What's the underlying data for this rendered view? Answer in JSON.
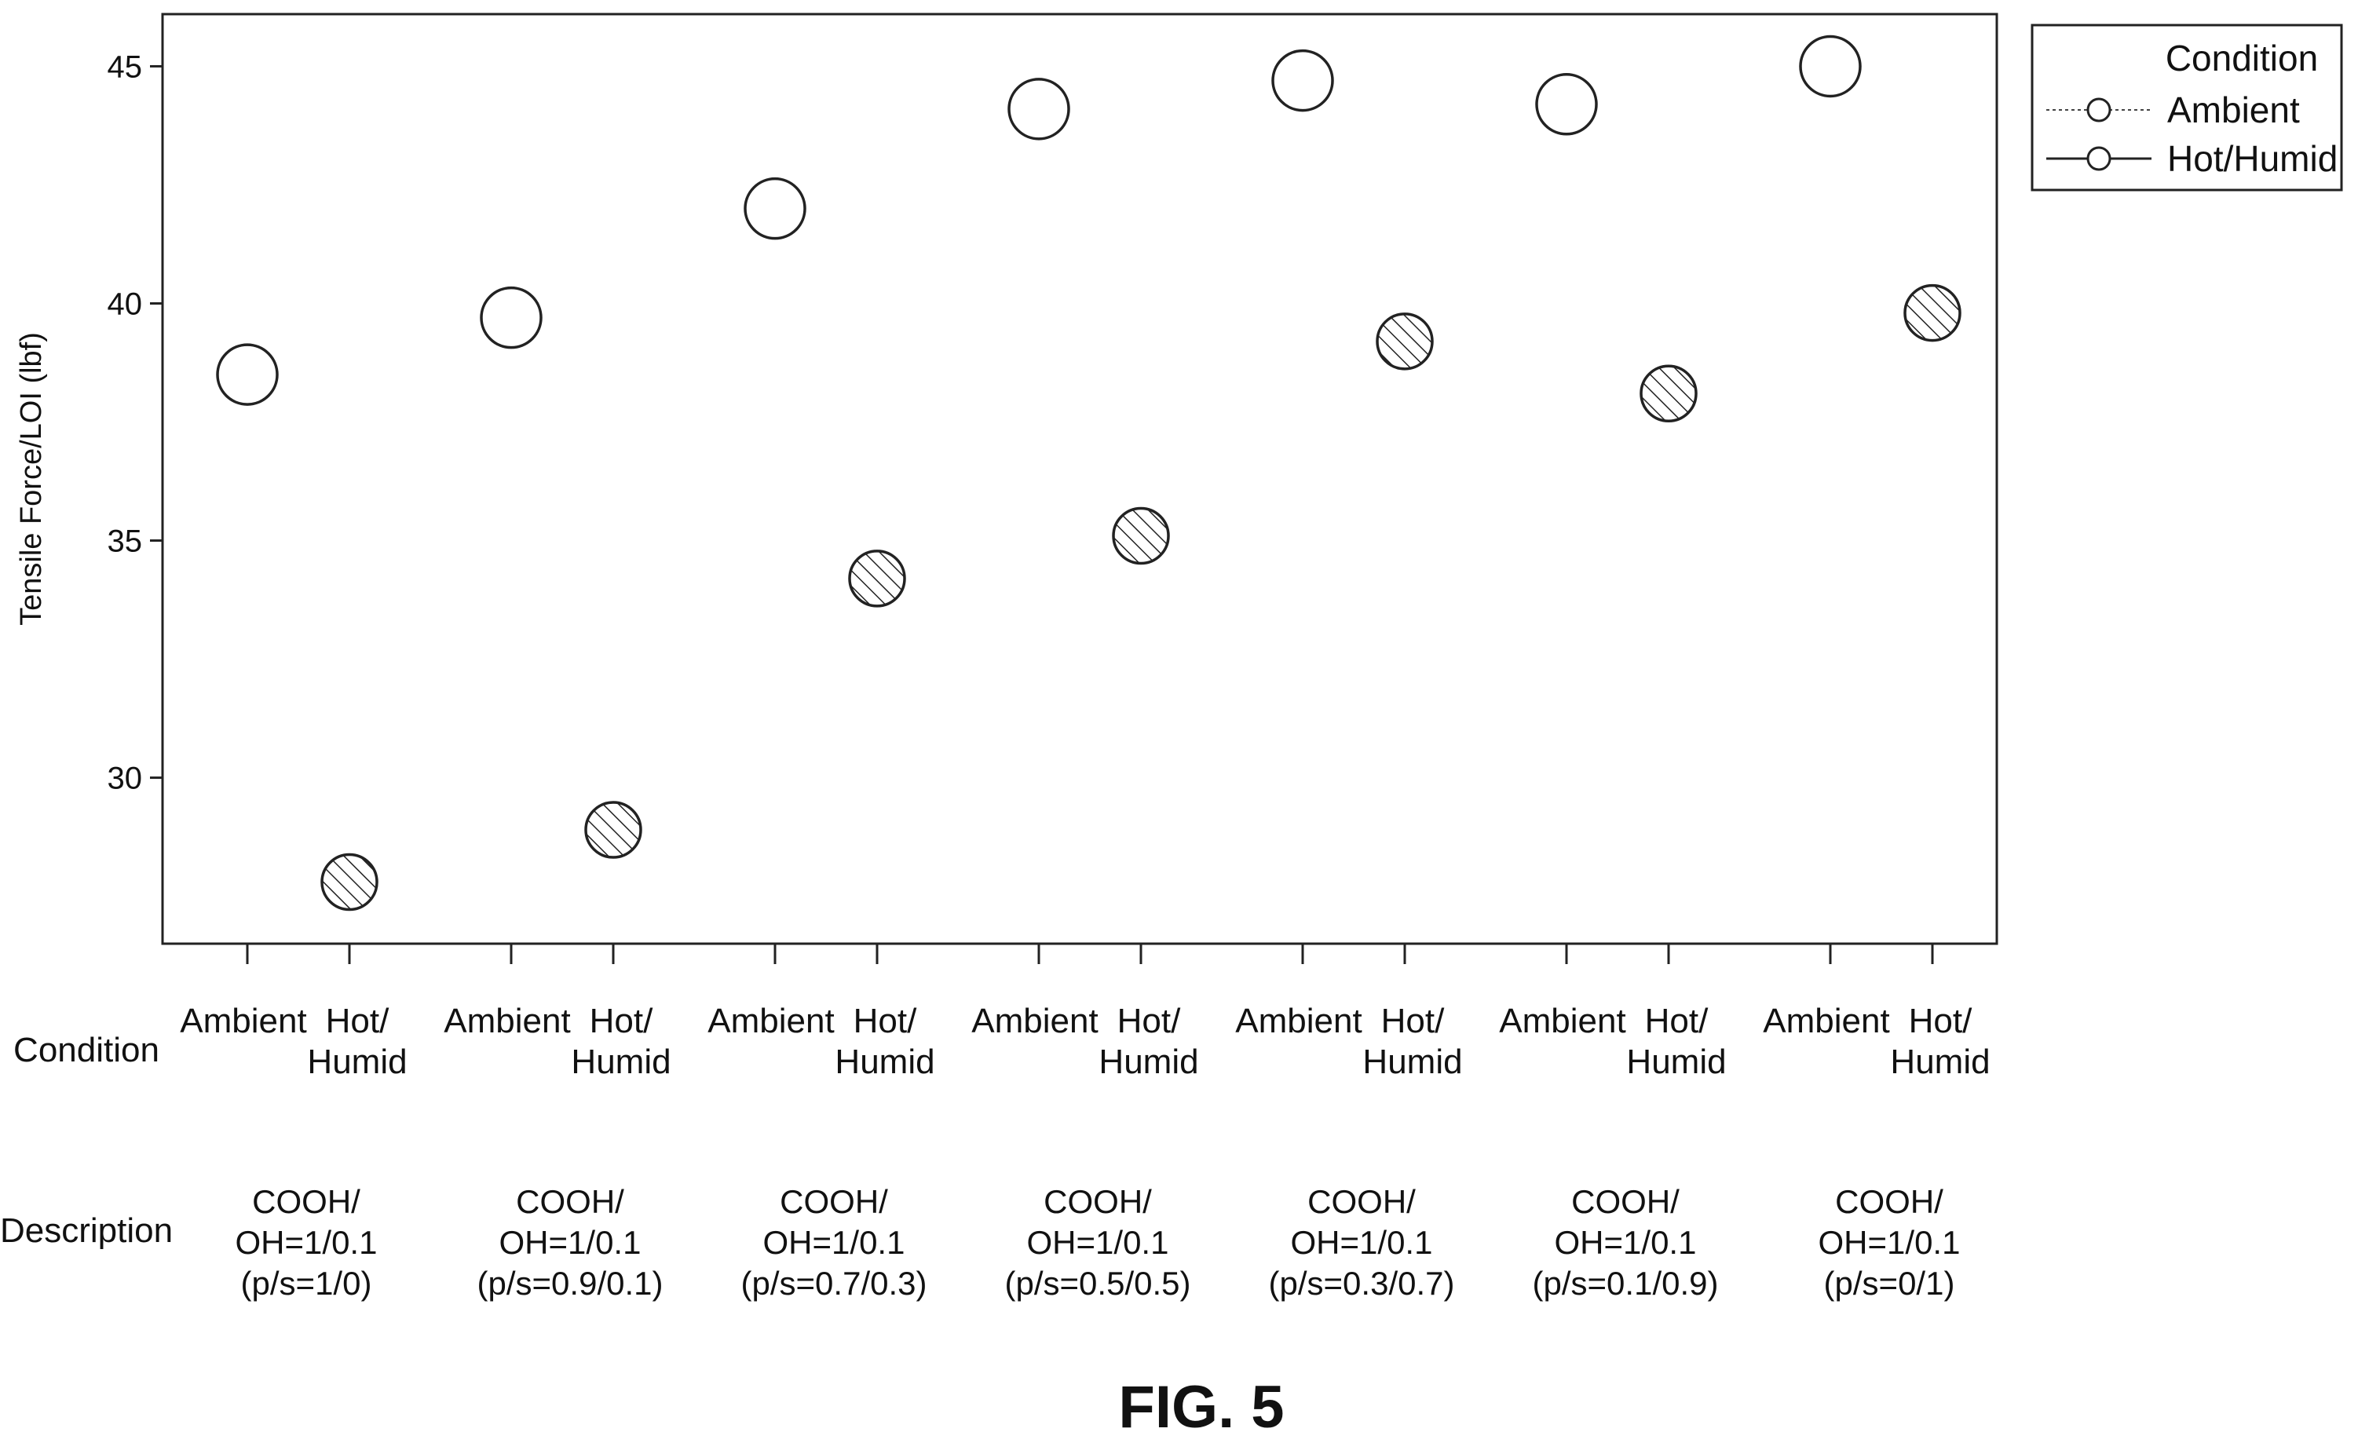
{
  "chart_data": {
    "type": "scatter",
    "ylabel": "Tensile Force/LOI (lbf)",
    "yticks": [
      30,
      35,
      40,
      45
    ],
    "ylim": [
      26.5,
      46.1
    ],
    "grid": false,
    "legend": {
      "title": "Condition",
      "placement": "top-right",
      "entries": [
        "Ambient",
        "Hot/Humid"
      ]
    },
    "row_headers": {
      "condition": "Condition",
      "description": "Description"
    },
    "groups": [
      {
        "description": [
          "COOH/",
          "OH=1/0.1",
          "(p/s=1/0)"
        ]
      },
      {
        "description": [
          "COOH/",
          "OH=1/0.1",
          "(p/s=0.9/0.1)"
        ]
      },
      {
        "description": [
          "COOH/",
          "OH=1/0.1",
          "(p/s=0.7/0.3)"
        ]
      },
      {
        "description": [
          "COOH/",
          "OH=1/0.1",
          "(p/s=0.5/0.5)"
        ]
      },
      {
        "description": [
          "COOH/",
          "OH=1/0.1",
          "(p/s=0.3/0.7)"
        ]
      },
      {
        "description": [
          "COOH/",
          "OH=1/0.1",
          "(p/s=0.1/0.9)"
        ]
      },
      {
        "description": [
          "COOH/",
          "OH=1/0.1",
          "(p/s=0/1)"
        ]
      }
    ],
    "condition_labels": {
      "ambient": [
        "Ambient"
      ],
      "hot_humid": [
        "Hot/",
        "Humid"
      ]
    },
    "series": [
      {
        "name": "Ambient",
        "values": [
          38.5,
          39.7,
          42.0,
          44.1,
          44.7,
          44.2,
          45.0
        ]
      },
      {
        "name": "Hot/Humid",
        "values": [
          27.8,
          28.9,
          34.2,
          35.1,
          39.2,
          38.1,
          39.8
        ]
      }
    ]
  },
  "caption": "FIG. 5"
}
